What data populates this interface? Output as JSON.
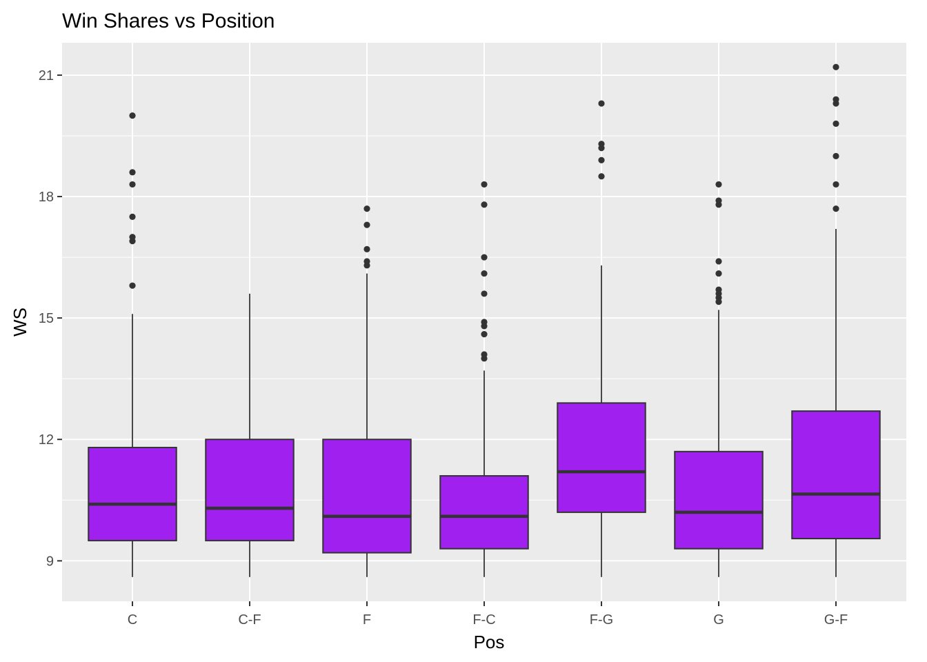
{
  "chart_data": {
    "type": "boxplot",
    "title": "Win Shares vs Position",
    "xlabel": "Pos",
    "ylabel": "WS",
    "categories": [
      "C",
      "C-F",
      "F",
      "F-C",
      "F-G",
      "G",
      "G-F"
    ],
    "ylim": [
      8.0,
      21.8
    ],
    "yticks": [
      9,
      12,
      15,
      18,
      21
    ],
    "grid": true,
    "legend": "none",
    "colors": {
      "panel": "#EBEBEB",
      "grid": "#FFFFFF",
      "box_fill": "#A020F0",
      "box_line": "#333333",
      "tick_text": "#4D4D4D"
    },
    "boxes": [
      {
        "category": "C",
        "lower_whisker": 8.6,
        "q1": 9.5,
        "median": 10.4,
        "q3": 11.8,
        "upper_whisker": 15.1,
        "outliers": [
          15.8,
          16.9,
          17.0,
          17.5,
          18.3,
          18.6,
          20.0
        ]
      },
      {
        "category": "C-F",
        "lower_whisker": 8.6,
        "q1": 9.5,
        "median": 10.3,
        "q3": 12.0,
        "upper_whisker": 15.6,
        "outliers": []
      },
      {
        "category": "F",
        "lower_whisker": 8.6,
        "q1": 9.2,
        "median": 10.1,
        "q3": 12.0,
        "upper_whisker": 16.1,
        "outliers": [
          16.3,
          16.4,
          16.7,
          17.3,
          17.7
        ]
      },
      {
        "category": "F-C",
        "lower_whisker": 8.6,
        "q1": 9.3,
        "median": 10.1,
        "q3": 11.1,
        "upper_whisker": 13.7,
        "outliers": [
          14.0,
          14.1,
          14.6,
          14.8,
          14.9,
          15.6,
          16.1,
          16.5,
          17.8,
          18.3
        ]
      },
      {
        "category": "F-G",
        "lower_whisker": 8.6,
        "q1": 10.2,
        "median": 11.2,
        "q3": 12.9,
        "upper_whisker": 16.3,
        "outliers": [
          18.5,
          18.9,
          19.2,
          19.3,
          20.3
        ]
      },
      {
        "category": "G",
        "lower_whisker": 8.6,
        "q1": 9.3,
        "median": 10.2,
        "q3": 11.7,
        "upper_whisker": 15.2,
        "outliers": [
          15.4,
          15.5,
          15.6,
          15.7,
          16.1,
          16.4,
          17.8,
          17.9,
          18.3
        ]
      },
      {
        "category": "G-F",
        "lower_whisker": 8.6,
        "q1": 9.55,
        "median": 10.65,
        "q3": 12.7,
        "upper_whisker": 17.2,
        "outliers": [
          17.7,
          18.3,
          19.0,
          19.8,
          20.3,
          20.4,
          21.2
        ]
      }
    ]
  }
}
